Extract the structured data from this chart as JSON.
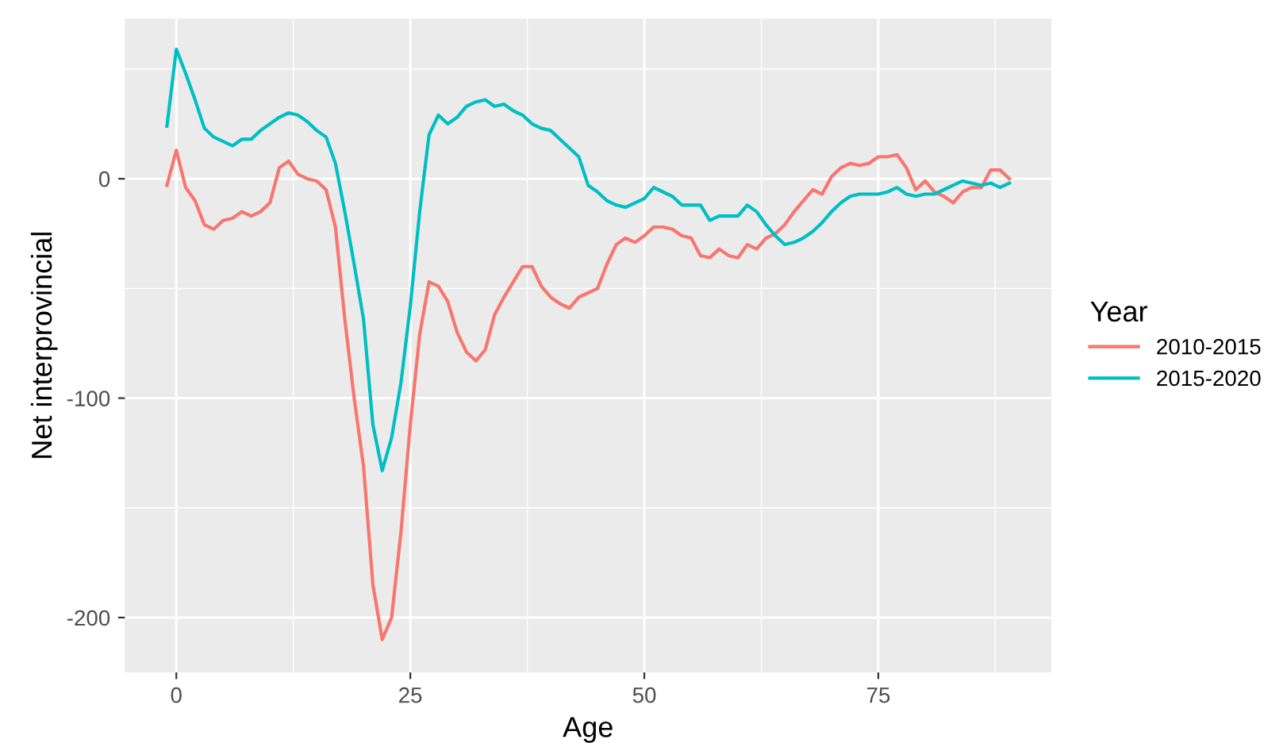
{
  "chart_data": {
    "type": "line",
    "xlabel": "Age",
    "ylabel": "Net interprovincial",
    "legend_title": "Year",
    "x": [
      -1,
      0,
      1,
      2,
      3,
      4,
      5,
      6,
      7,
      8,
      9,
      10,
      11,
      12,
      13,
      14,
      15,
      16,
      17,
      18,
      19,
      20,
      21,
      22,
      23,
      24,
      25,
      26,
      27,
      28,
      29,
      30,
      31,
      32,
      33,
      34,
      35,
      36,
      37,
      38,
      39,
      40,
      41,
      42,
      43,
      44,
      45,
      46,
      47,
      48,
      49,
      50,
      51,
      52,
      53,
      54,
      55,
      56,
      57,
      58,
      59,
      60,
      61,
      62,
      63,
      64,
      65,
      66,
      67,
      68,
      69,
      70,
      71,
      72,
      73,
      74,
      75,
      76,
      77,
      78,
      79,
      80,
      81,
      82,
      83,
      84,
      85,
      86,
      87,
      88,
      89
    ],
    "series": [
      {
        "name": "2010-2015",
        "color": "#f8766d",
        "values": [
          -3,
          13,
          -4,
          -10,
          -21,
          -23,
          -19,
          -18,
          -15,
          -17,
          -15,
          -11,
          5,
          8,
          2,
          0,
          -1,
          -5,
          -22,
          -64,
          -100,
          -131,
          -185,
          -210,
          -200,
          -161,
          -112,
          -71,
          -47,
          -49,
          -56,
          -70,
          -79,
          -83,
          -78,
          -62,
          -54,
          -47,
          -40,
          -40,
          -49,
          -54,
          -57,
          -59,
          -54,
          -52,
          -50,
          -39,
          -30,
          -27,
          -29,
          -26,
          -22,
          -22,
          -23,
          -26,
          -27,
          -35,
          -36,
          -32,
          -35,
          -36,
          -30,
          -32,
          -27,
          -25,
          -21,
          -15,
          -10,
          -5,
          -7,
          1,
          5,
          7,
          6,
          7,
          10,
          10,
          11,
          5,
          -5,
          -1,
          -6,
          -8,
          -11,
          -6,
          -4,
          -4,
          4,
          4,
          0
        ]
      },
      {
        "name": "2015-2020",
        "color": "#00bfc4",
        "values": [
          24,
          59,
          48,
          36,
          23,
          19,
          17,
          15,
          18,
          18,
          22,
          25,
          28,
          30,
          29,
          26,
          22,
          19,
          7,
          -15,
          -39,
          -64,
          -112,
          -133,
          -118,
          -93,
          -58,
          -15,
          20,
          29,
          25,
          28,
          33,
          35,
          36,
          33,
          34,
          31,
          29,
          25,
          23,
          22,
          18,
          14,
          10,
          -3,
          -6,
          -10,
          -12,
          -13,
          -11,
          -9,
          -4,
          -6,
          -8,
          -12,
          -12,
          -12,
          -19,
          -17,
          -17,
          -17,
          -12,
          -15,
          -21,
          -26,
          -30,
          -29,
          -27,
          -24,
          -20,
          -15,
          -11,
          -8,
          -7,
          -7,
          -7,
          -6,
          -4,
          -7,
          -8,
          -7,
          -7,
          -5,
          -3,
          -1,
          -2,
          -3,
          -2,
          -4,
          -2
        ]
      }
    ],
    "xlim": [
      -5.5,
      93.5
    ],
    "ylim": [
      -225,
      73
    ],
    "xticks": [
      0,
      25,
      50,
      75
    ],
    "yticks": [
      -200,
      -100,
      0
    ],
    "grid": true,
    "legend": "right",
    "marker": "none",
    "line_style": "solid"
  }
}
